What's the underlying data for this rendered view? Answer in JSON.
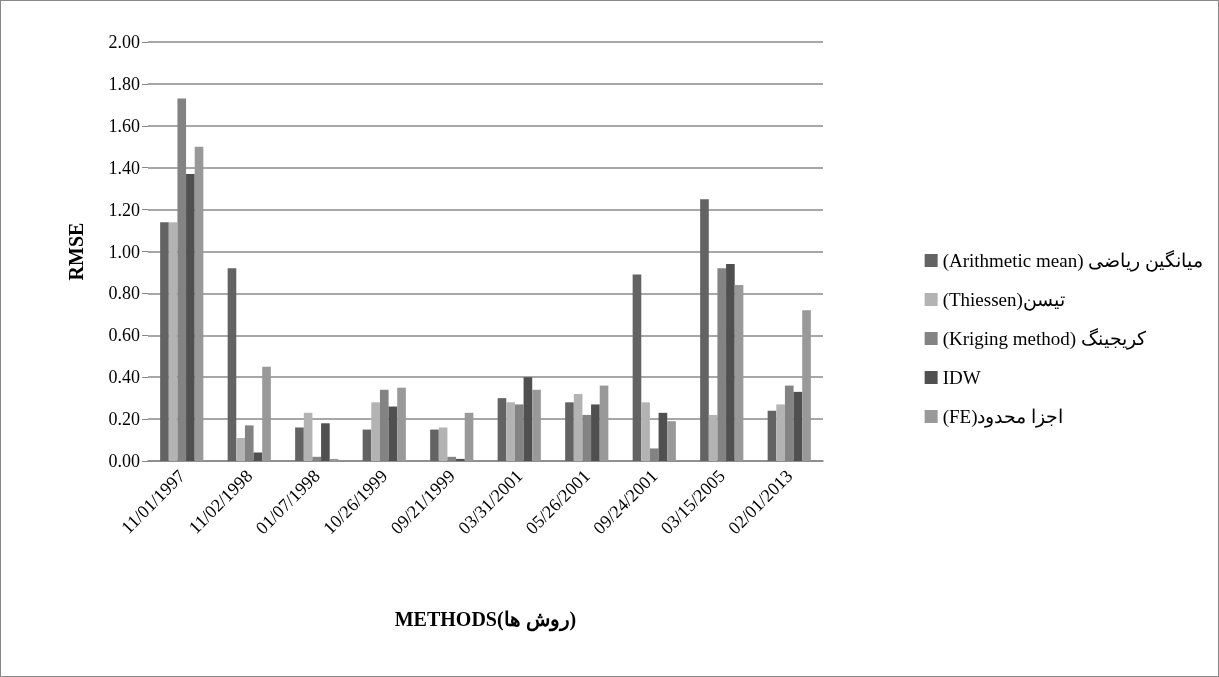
{
  "chart_data": {
    "type": "bar",
    "xlabel": "METHODS(روش ها)",
    "ylabel": "RMSE",
    "categories": [
      "11/01/1997",
      "11/02/1998",
      "01/07/1998",
      "10/26/1999",
      "09/21/1999",
      "03/31/2001",
      "05/26/2001",
      "09/24/2001",
      "03/15/2005",
      "02/01/2013"
    ],
    "series": [
      {
        "name": "(Arithmetic mean) میانگین ریاضی",
        "color": "#636363",
        "values": [
          1.14,
          0.92,
          0.16,
          0.15,
          0.15,
          0.3,
          0.28,
          0.89,
          1.25,
          0.24
        ]
      },
      {
        "name": "(Thiessen)تیسن",
        "color": "#b3b3b3",
        "values": [
          1.14,
          0.11,
          0.23,
          0.28,
          0.16,
          0.28,
          0.32,
          0.28,
          0.22,
          0.27
        ]
      },
      {
        "name": "(Kriging method) کریجینگ",
        "color": "#838383",
        "values": [
          1.73,
          0.17,
          0.02,
          0.34,
          0.02,
          0.27,
          0.22,
          0.06,
          0.92,
          0.36
        ]
      },
      {
        "name": "IDW",
        "color": "#505050",
        "values": [
          1.37,
          0.04,
          0.18,
          0.26,
          0.01,
          0.4,
          0.27,
          0.23,
          0.94,
          0.33
        ]
      },
      {
        "name": "(FE)اجزا محدود",
        "color": "#999999",
        "values": [
          1.5,
          0.45,
          0.01,
          0.35,
          0.23,
          0.34,
          0.36,
          0.19,
          0.84,
          0.72
        ]
      }
    ],
    "ylim": [
      0,
      2
    ],
    "yticks": [
      {
        "value": 0,
        "label": "0.00"
      },
      {
        "value": 0.2,
        "label": "0.20"
      },
      {
        "value": 0.4,
        "label": "0.40"
      },
      {
        "value": 0.6,
        "label": "0.60"
      },
      {
        "value": 0.8,
        "label": "0.80"
      },
      {
        "value": 1.0,
        "label": "1.00"
      },
      {
        "value": 1.2,
        "label": "1.20"
      },
      {
        "value": 1.4,
        "label": "1.40"
      },
      {
        "value": 1.6,
        "label": "1.60"
      },
      {
        "value": 1.8,
        "label": "1.80"
      },
      {
        "value": 2.0,
        "label": "2.00"
      }
    ],
    "grid": "y",
    "legend": "right"
  }
}
